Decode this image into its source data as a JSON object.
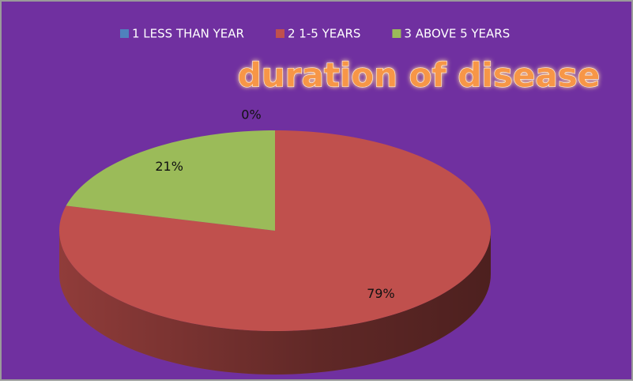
{
  "chart_data": {
    "type": "pie",
    "title": "duration of disease",
    "categories": [
      "1 LESS THAN YEAR",
      "2 1-5 YEARS",
      "3 ABOVE 5 YEARS"
    ],
    "values": [
      0,
      79,
      21
    ],
    "value_labels": [
      "0%",
      "79%",
      "21%"
    ],
    "colors": [
      "#4f81bd",
      "#c0504d",
      "#9bbb59"
    ],
    "legend": "top"
  }
}
